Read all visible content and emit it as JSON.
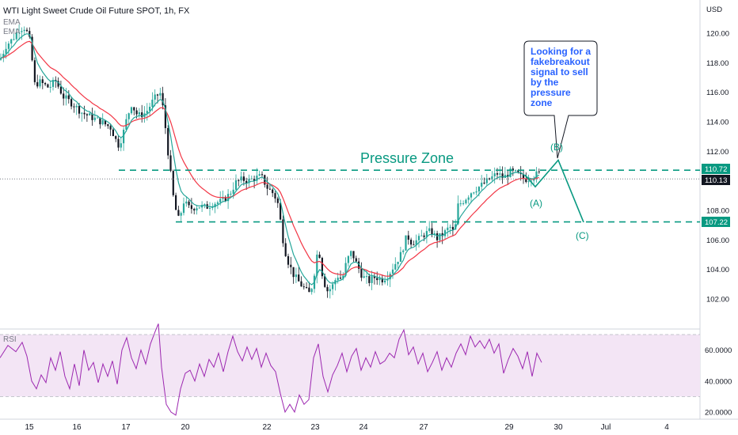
{
  "header": {
    "title": "WTI Light Sweet Crude Oil Future SPOT, 1h, FX",
    "indicator_1": "EMA",
    "indicator_2": "EMA"
  },
  "annotations": {
    "pressure_zone": "Pressure Zone",
    "callout": [
      "Looking for a",
      "fakebreakout",
      "signal to sell",
      "by the",
      "pressure",
      "zone"
    ],
    "wave_a": "(A)",
    "wave_b": "(B)",
    "wave_c": "(C)"
  },
  "price_axis": {
    "currency": "USD",
    "ticks": [
      "120.00",
      "118.00",
      "116.00",
      "114.00",
      "112.00",
      "108.00",
      "106.00",
      "104.00",
      "102.00"
    ],
    "level_upper": "110.72",
    "level_current": "110.13",
    "level_lower": "107.22"
  },
  "rsi": {
    "label": "RSI",
    "ticks": [
      "60.0000",
      "40.0000",
      "20.0000"
    ]
  },
  "time_axis": {
    "labels": [
      "15",
      "16",
      "17",
      "20",
      "22",
      "23",
      "24",
      "27",
      "29",
      "30",
      "Jul",
      "4"
    ]
  },
  "colors": {
    "bull": "#26a69a",
    "bear": "#131722",
    "ema_fast": "#26a69a",
    "ema_slow": "#f23645",
    "zone": "#089981",
    "rsi_line": "#9c27b0",
    "rsi_band": "#f3e5f5"
  },
  "chart_data": {
    "type": "candlestick",
    "title": "WTI Light Sweet Crude Oil Future SPOT, 1h, FX",
    "ylabel": "USD",
    "ylim": [
      100.5,
      121.5
    ],
    "x_labels": [
      "15",
      "16",
      "17",
      "20",
      "22",
      "23",
      "24",
      "27",
      "29",
      "30",
      "Jul",
      "4"
    ],
    "levels": {
      "resistance": 110.72,
      "current": 110.13,
      "support": 107.22
    },
    "price_path": [
      [
        0,
        118.2
      ],
      [
        8,
        119.2
      ],
      [
        16,
        119.6
      ],
      [
        24,
        120.3
      ],
      [
        32,
        120.4
      ],
      [
        38,
        119.4
      ],
      [
        44,
        116.5
      ],
      [
        50,
        116.7
      ],
      [
        62,
        116.3
      ],
      [
        70,
        116.8
      ],
      [
        80,
        115.7
      ],
      [
        92,
        115.2
      ],
      [
        104,
        114.6
      ],
      [
        116,
        114.3
      ],
      [
        128,
        114.0
      ],
      [
        140,
        113.6
      ],
      [
        146,
        112.8
      ],
      [
        150,
        112.4
      ],
      [
        155,
        113.1
      ],
      [
        160,
        114.2
      ],
      [
        166,
        115.2
      ],
      [
        174,
        114.4
      ],
      [
        184,
        114.6
      ],
      [
        194,
        115.5
      ],
      [
        202,
        116.0
      ],
      [
        207,
        114.6
      ],
      [
        211,
        112.5
      ],
      [
        216,
        110.2
      ],
      [
        220,
        108.4
      ],
      [
        226,
        107.3
      ],
      [
        232,
        108.6
      ],
      [
        240,
        108.1
      ],
      [
        250,
        108.3
      ],
      [
        260,
        108.2
      ],
      [
        270,
        108.5
      ],
      [
        280,
        108.6
      ],
      [
        290,
        109.1
      ],
      [
        298,
        109.9
      ],
      [
        306,
        110.1
      ],
      [
        314,
        110.0
      ],
      [
        322,
        110.2
      ],
      [
        330,
        110.3
      ],
      [
        338,
        109.5
      ],
      [
        346,
        109.1
      ],
      [
        352,
        108.3
      ],
      [
        356,
        106.4
      ],
      [
        362,
        104.8
      ],
      [
        370,
        103.7
      ],
      [
        378,
        103.1
      ],
      [
        386,
        102.6
      ],
      [
        392,
        102.3
      ],
      [
        397,
        103.8
      ],
      [
        402,
        105.6
      ],
      [
        408,
        103.3
      ],
      [
        414,
        102.5
      ],
      [
        420,
        102.9
      ],
      [
        426,
        103.6
      ],
      [
        432,
        103.3
      ],
      [
        438,
        104.6
      ],
      [
        444,
        105.2
      ],
      [
        450,
        104.4
      ],
      [
        458,
        103.5
      ],
      [
        466,
        103.2
      ],
      [
        474,
        103.5
      ],
      [
        482,
        103.3
      ],
      [
        490,
        103.6
      ],
      [
        498,
        104.3
      ],
      [
        506,
        105.0
      ],
      [
        514,
        106.3
      ],
      [
        520,
        105.8
      ],
      [
        528,
        106.0
      ],
      [
        536,
        106.4
      ],
      [
        544,
        106.6
      ],
      [
        552,
        106.1
      ],
      [
        560,
        106.4
      ],
      [
        568,
        106.9
      ],
      [
        574,
        106.4
      ],
      [
        578,
        108.3
      ],
      [
        586,
        108.7
      ],
      [
        596,
        109.3
      ],
      [
        608,
        109.7
      ],
      [
        618,
        110.1
      ],
      [
        628,
        110.5
      ],
      [
        636,
        110.2
      ],
      [
        644,
        110.6
      ],
      [
        652,
        110.5
      ],
      [
        660,
        110.2
      ],
      [
        666,
        110.1
      ],
      [
        672,
        110.3
      ],
      [
        680,
        110.5
      ]
    ],
    "projection": [
      [
        663,
        110.4
      ],
      [
        676,
        109.6
      ],
      [
        705,
        111.4
      ],
      [
        737,
        107.2
      ]
    ],
    "rsi": {
      "ylim": [
        10,
        80
      ],
      "band": [
        30,
        70
      ],
      "path": [
        [
          0,
          55
        ],
        [
          10,
          63
        ],
        [
          20,
          59
        ],
        [
          28,
          65
        ],
        [
          34,
          56
        ],
        [
          40,
          40
        ],
        [
          46,
          35
        ],
        [
          52,
          44
        ],
        [
          58,
          39
        ],
        [
          64,
          55
        ],
        [
          70,
          47
        ],
        [
          76,
          59
        ],
        [
          82,
          43
        ],
        [
          88,
          35
        ],
        [
          94,
          51
        ],
        [
          100,
          37
        ],
        [
          106,
          60
        ],
        [
          112,
          47
        ],
        [
          118,
          52
        ],
        [
          124,
          39
        ],
        [
          130,
          51
        ],
        [
          136,
          43
        ],
        [
          142,
          53
        ],
        [
          148,
          38
        ],
        [
          154,
          60
        ],
        [
          160,
          68
        ],
        [
          166,
          55
        ],
        [
          172,
          48
        ],
        [
          178,
          60
        ],
        [
          184,
          51
        ],
        [
          190,
          64
        ],
        [
          196,
          72
        ],
        [
          200,
          77
        ],
        [
          204,
          49
        ],
        [
          210,
          25
        ],
        [
          216,
          20
        ],
        [
          222,
          18
        ],
        [
          228,
          35
        ],
        [
          234,
          45
        ],
        [
          240,
          47
        ],
        [
          246,
          40
        ],
        [
          252,
          51
        ],
        [
          258,
          43
        ],
        [
          264,
          54
        ],
        [
          270,
          49
        ],
        [
          276,
          58
        ],
        [
          282,
          46
        ],
        [
          288,
          59
        ],
        [
          294,
          69
        ],
        [
          300,
          59
        ],
        [
          306,
          53
        ],
        [
          312,
          62
        ],
        [
          318,
          54
        ],
        [
          324,
          61
        ],
        [
          330,
          49
        ],
        [
          336,
          58
        ],
        [
          342,
          50
        ],
        [
          348,
          46
        ],
        [
          354,
          32
        ],
        [
          360,
          20
        ],
        [
          366,
          25
        ],
        [
          372,
          20
        ],
        [
          378,
          31
        ],
        [
          384,
          25
        ],
        [
          390,
          28
        ],
        [
          396,
          55
        ],
        [
          402,
          64
        ],
        [
          408,
          43
        ],
        [
          414,
          33
        ],
        [
          420,
          44
        ],
        [
          426,
          50
        ],
        [
          432,
          58
        ],
        [
          438,
          46
        ],
        [
          444,
          56
        ],
        [
          450,
          61
        ],
        [
          456,
          47
        ],
        [
          462,
          55
        ],
        [
          468,
          49
        ],
        [
          474,
          59
        ],
        [
          480,
          51
        ],
        [
          486,
          53
        ],
        [
          492,
          58
        ],
        [
          498,
          55
        ],
        [
          504,
          67
        ],
        [
          510,
          73
        ],
        [
          516,
          57
        ],
        [
          522,
          62
        ],
        [
          528,
          51
        ],
        [
          534,
          58
        ],
        [
          540,
          46
        ],
        [
          546,
          52
        ],
        [
          552,
          59
        ],
        [
          558,
          47
        ],
        [
          564,
          55
        ],
        [
          570,
          49
        ],
        [
          576,
          58
        ],
        [
          582,
          64
        ],
        [
          588,
          57
        ],
        [
          594,
          69
        ],
        [
          600,
          62
        ],
        [
          606,
          66
        ],
        [
          612,
          61
        ],
        [
          618,
          67
        ],
        [
          624,
          58
        ],
        [
          630,
          64
        ],
        [
          636,
          45
        ],
        [
          642,
          54
        ],
        [
          648,
          61
        ],
        [
          654,
          56
        ],
        [
          660,
          48
        ],
        [
          666,
          59
        ],
        [
          672,
          43
        ],
        [
          678,
          58
        ],
        [
          684,
          52
        ]
      ]
    }
  }
}
